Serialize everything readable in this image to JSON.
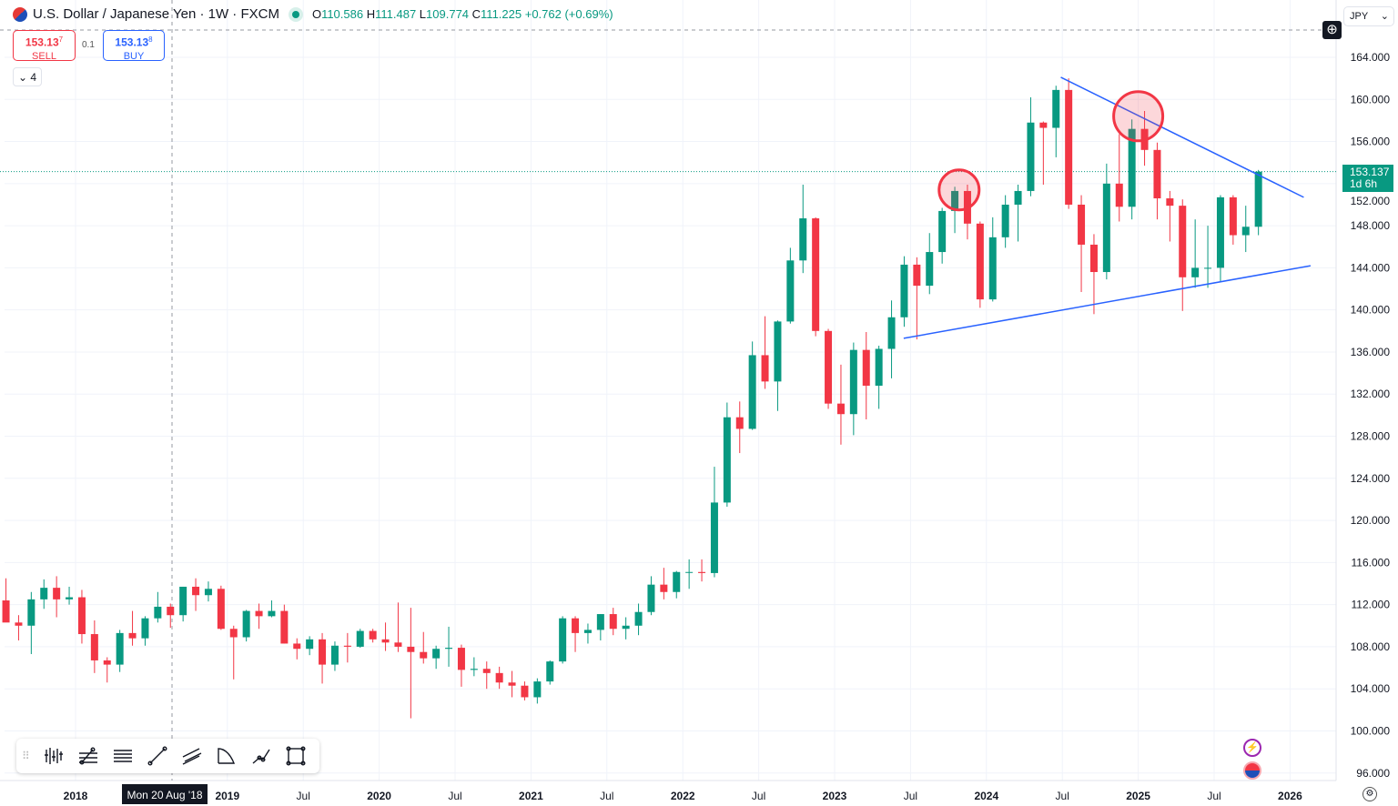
{
  "header": {
    "symbol": "U.S. Dollar / Japanese Yen · 1W · FXCM",
    "o_label": "O",
    "o": "110.586",
    "h_label": "H",
    "h": "111.487",
    "l_label": "L",
    "l": "109.774",
    "c_label": "C",
    "c": "111.225",
    "change": "+0.762 (+0.69%)"
  },
  "trade": {
    "sell_price": "153.13",
    "sell_sup": "7",
    "sell_label": "SELL",
    "spread": "0.1",
    "buy_price": "153.13",
    "buy_sup": "8",
    "buy_label": "BUY"
  },
  "indicators_toggle": "4",
  "currency": "JPY",
  "last_price": "153.137",
  "countdown": "1d 6h",
  "crosshair_date": "Mon 20 Aug '18",
  "colors": {
    "up": "#089981",
    "down": "#f23645",
    "trend": "#2962ff"
  },
  "chart_data": {
    "type": "candlestick",
    "title": "U.S. Dollar / Japanese Yen · 1W · FXCM",
    "y_ticks": [
      "96.000",
      "100.000",
      "104.000",
      "108.000",
      "112.000",
      "116.000",
      "120.000",
      "124.000",
      "128.000",
      "132.000",
      "136.000",
      "140.000",
      "144.000",
      "148.000",
      "152.000",
      "156.000",
      "160.000",
      "164.000"
    ],
    "y_range": [
      95,
      167
    ],
    "x_ticks": [
      {
        "label": "2018",
        "t": 2018
      },
      {
        "label": "2019",
        "t": 2019
      },
      {
        "label": "Jul",
        "t": 2019.5
      },
      {
        "label": "2020",
        "t": 2020
      },
      {
        "label": "Jul",
        "t": 2020.5
      },
      {
        "label": "2021",
        "t": 2021
      },
      {
        "label": "Jul",
        "t": 2021.5
      },
      {
        "label": "2022",
        "t": 2022
      },
      {
        "label": "Jul",
        "t": 2022.5
      },
      {
        "label": "2023",
        "t": 2023
      },
      {
        "label": "Jul",
        "t": 2023.5
      },
      {
        "label": "2024",
        "t": 2024
      },
      {
        "label": "Jul",
        "t": 2024.5
      },
      {
        "label": "2025",
        "t": 2025
      },
      {
        "label": "Jul",
        "t": 2025.5
      },
      {
        "label": "2026",
        "t": 2026
      }
    ],
    "start": 2017.5,
    "ohlc_monthly": [
      [
        112.4,
        114.5,
        110.6,
        110.3
      ],
      [
        110.3,
        111,
        108.6,
        110
      ],
      [
        110,
        113.2,
        107.3,
        112.5
      ],
      [
        112.5,
        114.4,
        111.6,
        113.6
      ],
      [
        113.6,
        114.7,
        110.8,
        112.5
      ],
      [
        112.5,
        113.7,
        112,
        112.7
      ],
      [
        112.7,
        113.4,
        108.3,
        109.2
      ],
      [
        109.2,
        110.5,
        105.5,
        106.7
      ],
      [
        106.7,
        107,
        104.6,
        106.3
      ],
      [
        106.3,
        109.6,
        105.6,
        109.3
      ],
      [
        109.3,
        111.4,
        108.1,
        108.8
      ],
      [
        108.8,
        110.9,
        108.1,
        110.7
      ],
      [
        110.7,
        113.2,
        110.3,
        111.8
      ],
      [
        111.8,
        112.1,
        109.8,
        111
      ],
      [
        111,
        113.7,
        110.4,
        113.7
      ],
      [
        113.7,
        114.5,
        111.4,
        112.9
      ],
      [
        112.9,
        114.2,
        112.3,
        113.5
      ],
      [
        113.5,
        113.8,
        109.6,
        109.7
      ],
      [
        109.7,
        110,
        104.9,
        108.9
      ],
      [
        108.9,
        111.5,
        108.5,
        111.4
      ],
      [
        111.4,
        112.1,
        109.7,
        110.9
      ],
      [
        110.9,
        112.4,
        110.8,
        111.4
      ],
      [
        111.4,
        112,
        108.3,
        108.3
      ],
      [
        108.3,
        108.8,
        106.8,
        107.8
      ],
      [
        107.8,
        109,
        107.2,
        108.7
      ],
      [
        108.7,
        109.3,
        104.5,
        106.3
      ],
      [
        106.3,
        108.5,
        105.7,
        108.1
      ],
      [
        108.1,
        109.3,
        106.5,
        108
      ],
      [
        108,
        109.7,
        107.9,
        109.5
      ],
      [
        109.5,
        109.7,
        108.4,
        108.7
      ],
      [
        108.7,
        110.3,
        107.6,
        108.4
      ],
      [
        108.4,
        112.2,
        107.5,
        108
      ],
      [
        108,
        111.7,
        101.2,
        107.5
      ],
      [
        107.5,
        109.4,
        106.4,
        106.9
      ],
      [
        106.9,
        108.1,
        105.9,
        107.8
      ],
      [
        107.8,
        109.9,
        106.1,
        107.9
      ],
      [
        107.9,
        108.2,
        104.2,
        105.8
      ],
      [
        105.8,
        107,
        105.2,
        105.9
      ],
      [
        105.9,
        106.6,
        104,
        105.5
      ],
      [
        105.5,
        106.1,
        104,
        104.6
      ],
      [
        104.6,
        105.7,
        103.2,
        104.3
      ],
      [
        104.3,
        104.7,
        102.9,
        103.2
      ],
      [
        103.2,
        105,
        102.6,
        104.7
      ],
      [
        104.7,
        106.7,
        104.4,
        106.6
      ],
      [
        106.6,
        110.9,
        106.4,
        110.7
      ],
      [
        110.7,
        110.9,
        107.5,
        109.3
      ],
      [
        109.3,
        110.2,
        108.3,
        109.6
      ],
      [
        109.6,
        111.1,
        108.6,
        111.1
      ],
      [
        111.1,
        111.7,
        109.1,
        109.7
      ],
      [
        109.7,
        110.8,
        108.7,
        110
      ],
      [
        110,
        112.1,
        109.1,
        111.3
      ],
      [
        111.3,
        114.7,
        111,
        113.9
      ],
      [
        113.9,
        115.5,
        112.5,
        113.2
      ],
      [
        113.2,
        115.2,
        112.6,
        115.1
      ],
      [
        115.1,
        116.3,
        113.5,
        115.1
      ],
      [
        115.1,
        116.3,
        114.2,
        115
      ],
      [
        115,
        125.1,
        114.6,
        121.7
      ],
      [
        121.7,
        131.2,
        121.3,
        129.8
      ],
      [
        129.8,
        131.3,
        126.4,
        128.7
      ],
      [
        128.7,
        137,
        128.6,
        135.7
      ],
      [
        135.7,
        139.4,
        132.5,
        133.2
      ],
      [
        133.2,
        139,
        130.4,
        138.9
      ],
      [
        138.9,
        145.9,
        138.7,
        144.7
      ],
      [
        144.7,
        151.9,
        143.5,
        148.7
      ],
      [
        148.7,
        148.8,
        137.5,
        138
      ],
      [
        138,
        138.2,
        130.6,
        131.1
      ],
      [
        131.1,
        134.8,
        127.2,
        130.1
      ],
      [
        130.1,
        136.9,
        128.1,
        136.2
      ],
      [
        136.2,
        137.9,
        129.6,
        132.8
      ],
      [
        132.8,
        136.6,
        130.6,
        136.3
      ],
      [
        136.3,
        140.9,
        133.5,
        139.3
      ],
      [
        139.3,
        145.1,
        138.4,
        144.3
      ],
      [
        144.3,
        145,
        137.2,
        142.3
      ],
      [
        142.3,
        147.3,
        141.5,
        145.5
      ],
      [
        145.5,
        149.7,
        144.4,
        149.4
      ],
      [
        149.4,
        151.7,
        147.3,
        151.3
      ],
      [
        151.3,
        151.9,
        146.7,
        148.2
      ],
      [
        148.2,
        148.4,
        140.2,
        141
      ],
      [
        141,
        148.8,
        140.8,
        146.9
      ],
      [
        146.9,
        150.9,
        145.9,
        150
      ],
      [
        150,
        151.9,
        146.5,
        151.3
      ],
      [
        151.3,
        160.2,
        150.8,
        157.8
      ],
      [
        157.8,
        157.9,
        151.9,
        157.3
      ],
      [
        157.3,
        161.3,
        154.5,
        160.9
      ],
      [
        160.9,
        162,
        149.6,
        150
      ],
      [
        150,
        150.9,
        141.7,
        146.2
      ],
      [
        146.2,
        147.2,
        139.6,
        143.6
      ],
      [
        143.6,
        153.9,
        142.9,
        152
      ],
      [
        152,
        156.7,
        148.4,
        149.8
      ],
      [
        149.8,
        158.1,
        148.6,
        157.2
      ],
      [
        157.2,
        158.9,
        153.7,
        155.2
      ],
      [
        155.2,
        155.9,
        148.6,
        150.6
      ],
      [
        150.6,
        151.3,
        146.5,
        149.9
      ],
      [
        149.9,
        150.5,
        139.9,
        143.1
      ],
      [
        143.1,
        148.6,
        142.1,
        144
      ],
      [
        144,
        148,
        142.1,
        144
      ],
      [
        144,
        150.9,
        142.7,
        150.7
      ],
      [
        150.7,
        150.9,
        146.2,
        147.1
      ],
      [
        147.1,
        149.9,
        145.5,
        147.9
      ],
      [
        147.9,
        153.3,
        147.1,
        153.137
      ]
    ],
    "trendlines": [
      {
        "from": [
          2024.49,
          162.1
        ],
        "to": [
          2026.09,
          150.7
        ]
      },
      {
        "from": [
          2023.455,
          137.3
        ],
        "to": [
          2026.135,
          144.2
        ]
      }
    ],
    "highlights": [
      {
        "t": 2023.82,
        "p": 151.4
      },
      {
        "t": 2025.0,
        "p": 158.4
      }
    ]
  }
}
